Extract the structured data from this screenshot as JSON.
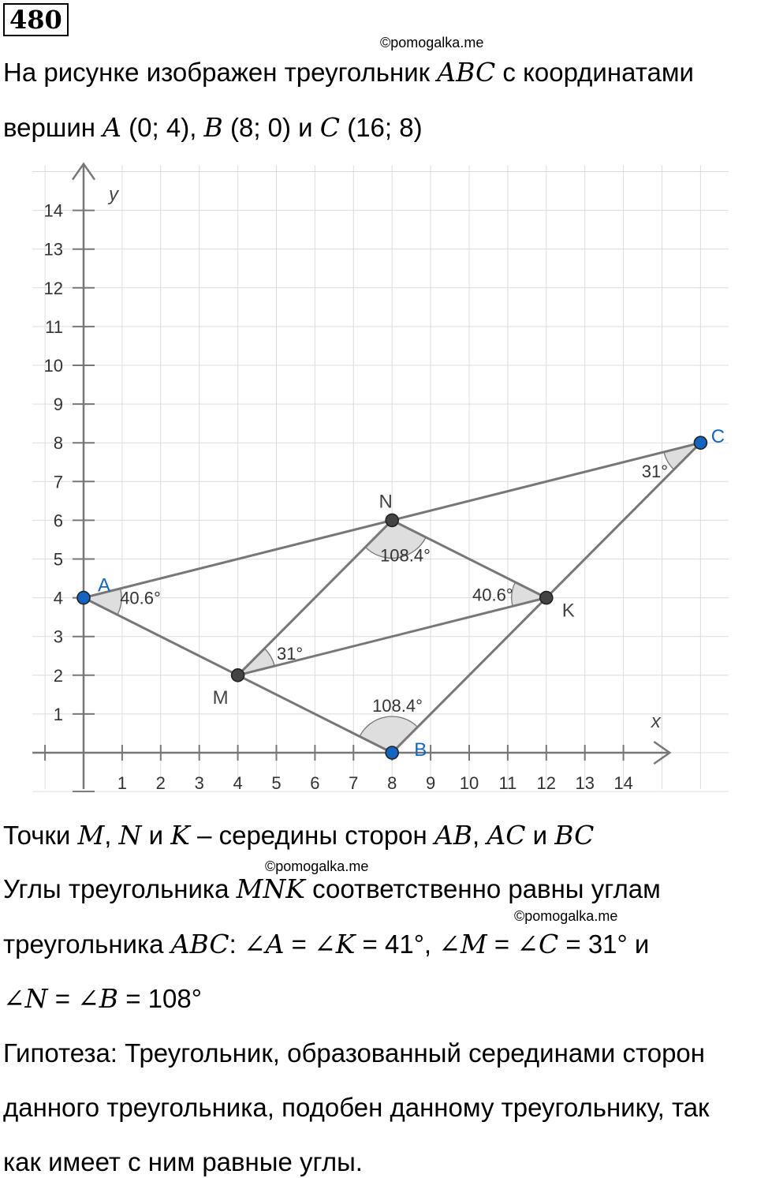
{
  "problem_number": "480",
  "watermark": "©pomogalka.me",
  "intro": {
    "t1": "На рисунке изображен треугольник ",
    "m1": "ABC",
    "t2": " с координатами",
    "t3": "вершин ",
    "mA": "A",
    "cA": " (0; 4), ",
    "mB": "B",
    "cB": " (8; 0) и ",
    "mC": "C",
    "cC": " (16; 8)"
  },
  "chart_data": {
    "type": "scatter",
    "xlabel": "x",
    "ylabel": "y",
    "x_ticks": [
      "1",
      "2",
      "3",
      "4",
      "5",
      "6",
      "7",
      "8",
      "9",
      "10",
      "11",
      "12",
      "13",
      "14"
    ],
    "y_ticks": [
      "1",
      "2",
      "3",
      "4",
      "5",
      "6",
      "7",
      "8",
      "9",
      "10",
      "11",
      "12",
      "13",
      "14"
    ],
    "xlim": [
      -1,
      16.6
    ],
    "ylim": [
      -1,
      15
    ],
    "grid": true,
    "points": [
      {
        "label": "A",
        "x": 0,
        "y": 4,
        "color": "#1565c0"
      },
      {
        "label": "B",
        "x": 8,
        "y": 0,
        "color": "#1565c0"
      },
      {
        "label": "C",
        "x": 16,
        "y": 8,
        "color": "#1565c0"
      },
      {
        "label": "M",
        "x": 4,
        "y": 2,
        "color": "#444444"
      },
      {
        "label": "N",
        "x": 8,
        "y": 6,
        "color": "#444444"
      },
      {
        "label": "K",
        "x": 12,
        "y": 4,
        "color": "#444444"
      }
    ],
    "angles": [
      {
        "vertex": "A",
        "label": "40.6°"
      },
      {
        "vertex": "B",
        "label": "108.4°"
      },
      {
        "vertex": "C",
        "label": "31°"
      },
      {
        "vertex": "M",
        "label": "31°"
      },
      {
        "vertex": "N",
        "label": "108.4°"
      },
      {
        "vertex": "K",
        "label": "40.6°"
      }
    ]
  },
  "midpoints": {
    "t1": "Точки ",
    "mM": "M",
    "s1": ", ",
    "mN": "N",
    "s2": " и ",
    "mK": "K",
    "t2": " – середины сторон ",
    "mAB": "AB",
    "s3": ", ",
    "mAC": "AC",
    "s4": " и ",
    "mBC": "BC"
  },
  "angles_text": {
    "t1": "Углы треугольника ",
    "mMNK": "MNK",
    "t2": " соответственно равны углам",
    "t3": "треугольника ",
    "mABC": "ABC",
    "t4": ": ",
    "e1a": "∠A",
    "e1b": " = ",
    "e1c": "∠K",
    "e1d": " = 41°, ",
    "e2a": "∠M",
    "e2b": " = ",
    "e2c": "∠C",
    "e2d": " = 31° и",
    "e3a": "∠N",
    "e3b": " = ",
    "e3c": "∠B",
    "e3d": " = 108°"
  },
  "hypothesis": {
    "line1": "Гипотеза: Треугольник, образованный серединами сторон",
    "line2": "данного треугольника, подобен данному треугольнику, так",
    "line3": "как имеет с ним равные углы."
  }
}
